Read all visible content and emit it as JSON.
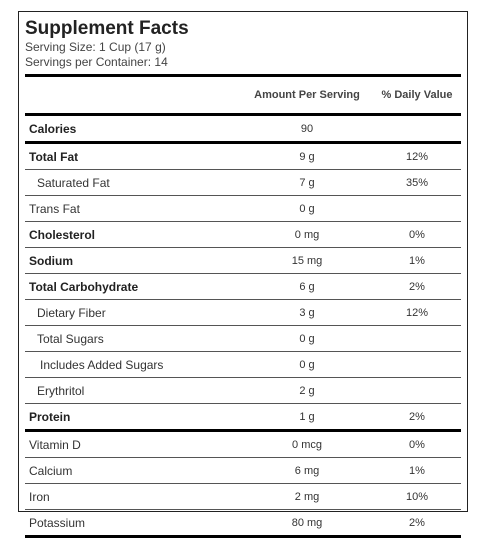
{
  "title": "Supplement Facts",
  "serving_size": "Serving Size: 1 Cup (17 g)",
  "servings_per_container": "Servings per Container: 14",
  "columns": {
    "amount": "Amount Per Serving",
    "daily_value": "% Daily Value"
  },
  "rows": [
    {
      "name": "Calories",
      "amount": "90",
      "dv": ""
    },
    {
      "name": "Total Fat",
      "amount": "9 g",
      "dv": "12%"
    },
    {
      "name": "Saturated Fat",
      "amount": "7 g",
      "dv": "35%"
    },
    {
      "name": "Trans Fat",
      "amount": "0 g",
      "dv": ""
    },
    {
      "name": "Cholesterol",
      "amount": "0 mg",
      "dv": "0%"
    },
    {
      "name": "Sodium",
      "amount": "15 mg",
      "dv": "1%"
    },
    {
      "name": "Total Carbohydrate",
      "amount": "6 g",
      "dv": "2%"
    },
    {
      "name": "Dietary Fiber",
      "amount": "3 g",
      "dv": "12%"
    },
    {
      "name": "Total Sugars",
      "amount": "0 g",
      "dv": ""
    },
    {
      "name": "Includes Added Sugars",
      "amount": "0 g",
      "dv": ""
    },
    {
      "name": "Erythritol",
      "amount": "2 g",
      "dv": ""
    },
    {
      "name": "Protein",
      "amount": "1 g",
      "dv": "2%"
    },
    {
      "name": "Vitamin D",
      "amount": "0 mcg",
      "dv": "0%"
    },
    {
      "name": "Calcium",
      "amount": "6 mg",
      "dv": "1%"
    },
    {
      "name": "Iron",
      "amount": "2 mg",
      "dv": "10%"
    },
    {
      "name": "Potassium",
      "amount": "80 mg",
      "dv": "2%"
    }
  ]
}
